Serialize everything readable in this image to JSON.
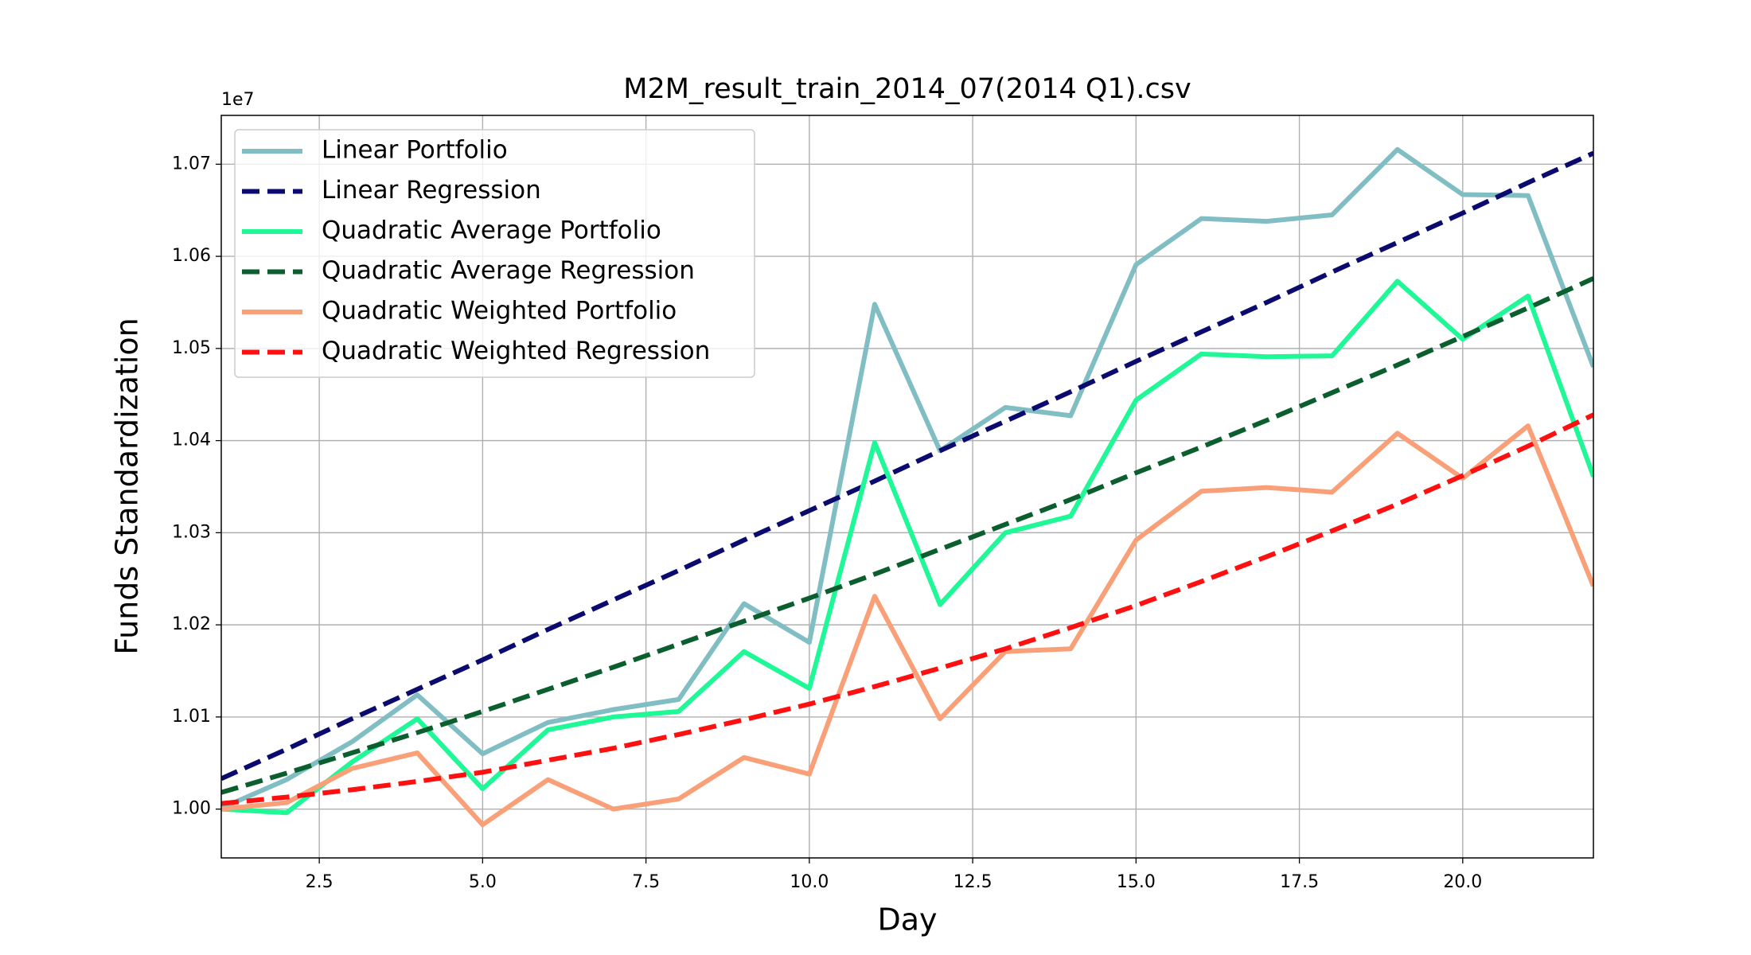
{
  "chart_data": {
    "type": "line",
    "title": "M2M_result_train_2014_07(2014 Q1).csv",
    "x_label": "Day",
    "y_label": "Funds Standardization",
    "y_offset_label": "1e7",
    "x": [
      1,
      2,
      3,
      4,
      5,
      6,
      7,
      8,
      9,
      10,
      11,
      12,
      13,
      14,
      15,
      16,
      17,
      18,
      19,
      20,
      21,
      22
    ],
    "xlim": [
      1,
      22
    ],
    "xticks": [
      2.5,
      {
        "value": 5,
        "label": "5.0"
      },
      7.5,
      {
        "value": 10,
        "label": "10.0"
      },
      12.5,
      {
        "value": 15,
        "label": "15.0"
      },
      17.5,
      {
        "value": 20,
        "label": "20.0"
      }
    ],
    "ylim": [
      0.9947,
      1.0753
    ],
    "yticks": [
      {
        "value": 1.0,
        "label": "1.00"
      },
      {
        "value": 1.01,
        "label": "1.01"
      },
      {
        "value": 1.02,
        "label": "1.02"
      },
      {
        "value": 1.03,
        "label": "1.03"
      },
      {
        "value": 1.04,
        "label": "1.04"
      },
      {
        "value": 1.05,
        "label": "1.05"
      },
      {
        "value": 1.06,
        "label": "1.06"
      },
      {
        "value": 1.07,
        "label": "1.07"
      }
    ],
    "grid": true,
    "legend": "upper left",
    "series": [
      {
        "name": "Linear Portfolio",
        "color": "#80bec3",
        "linestyle": "solid",
        "values": [
          1.0001,
          1.0032,
          1.0073,
          1.0124,
          1.006,
          1.0094,
          1.0108,
          1.0119,
          1.0223,
          1.0181,
          1.0548,
          1.0389,
          1.0436,
          1.0427,
          1.0591,
          1.0641,
          1.0638,
          1.0645,
          1.0716,
          1.0667,
          1.0666,
          1.048
        ]
      },
      {
        "name": "Linear Regression",
        "color": "#0b0b6f",
        "linestyle": "dashed",
        "values": [
          1.0033,
          1.0065,
          1.0098,
          1.013,
          1.0162,
          1.0195,
          1.0227,
          1.0259,
          1.0292,
          1.0324,
          1.0356,
          1.0389,
          1.0421,
          1.0453,
          1.0486,
          1.0518,
          1.055,
          1.0583,
          1.0615,
          1.0647,
          1.068,
          1.0712
        ]
      },
      {
        "name": "Quadratic Average Portfolio",
        "color": "#1ff896",
        "linestyle": "solid",
        "values": [
          1.0,
          0.9996,
          1.0051,
          1.0098,
          1.0022,
          1.0086,
          1.01,
          1.0106,
          1.0171,
          1.0131,
          1.0398,
          1.0222,
          1.03,
          1.0318,
          1.0444,
          1.0494,
          1.0491,
          1.0492,
          1.0573,
          1.051,
          1.0557,
          1.0361
        ]
      },
      {
        "name": "Quadratic Average Regression",
        "color": "#0b5e2e",
        "linestyle": "dashed",
        "values": [
          1.0018,
          1.0039,
          1.0061,
          1.0083,
          1.0106,
          1.013,
          1.0154,
          1.0179,
          1.0204,
          1.0229,
          1.0255,
          1.0282,
          1.0309,
          1.0336,
          1.0365,
          1.0393,
          1.0422,
          1.0452,
          1.0482,
          1.0513,
          1.0544,
          1.0576
        ]
      },
      {
        "name": "Quadratic Weighted Portfolio",
        "color": "#f9a078",
        "linestyle": "solid",
        "values": [
          1.0,
          1.0007,
          1.0044,
          1.0061,
          0.9983,
          1.0032,
          1.0,
          1.0011,
          1.0056,
          1.0038,
          1.0231,
          1.0098,
          1.0171,
          1.0174,
          1.0292,
          1.0345,
          1.0349,
          1.0344,
          1.0408,
          1.0359,
          1.0416,
          1.0242
        ]
      },
      {
        "name": "Quadratic Weighted Regression",
        "color": "#ff1010",
        "linestyle": "dashed",
        "values": [
          1.0006,
          1.0013,
          1.0021,
          1.003,
          1.004,
          1.0053,
          1.0066,
          1.0081,
          1.0097,
          1.0114,
          1.0133,
          1.0153,
          1.0174,
          1.0197,
          1.0221,
          1.0247,
          1.0274,
          1.0302,
          1.0331,
          1.0362,
          1.0394,
          1.0428
        ]
      }
    ]
  }
}
